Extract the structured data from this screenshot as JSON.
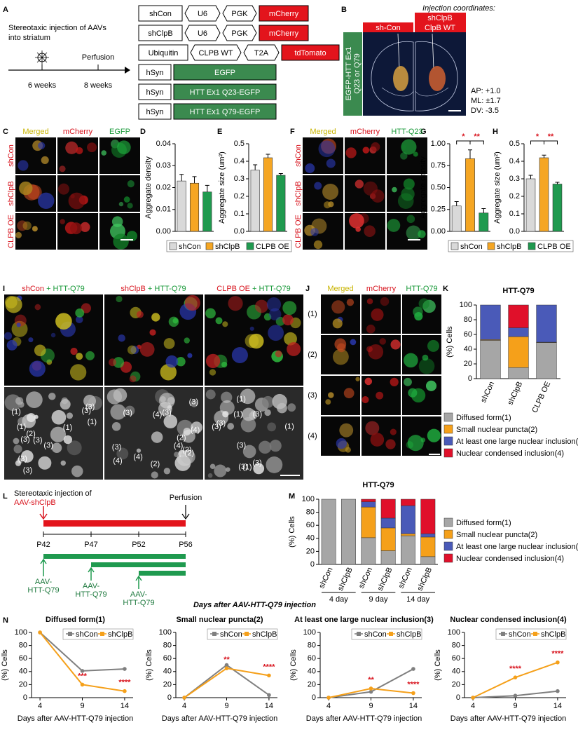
{
  "panel_labels": [
    "A",
    "B",
    "C",
    "D",
    "E",
    "F",
    "G",
    "H",
    "I",
    "J",
    "K",
    "L",
    "M",
    "N"
  ],
  "panel_a": {
    "injection": [
      "Stereotaxic injection of AAVs",
      "into striatum"
    ],
    "perfusion": "Perfusion",
    "timepoints": [
      "6 weeks",
      "8 weeks"
    ],
    "constructs": [
      {
        "parts": [
          "shCon",
          "U6",
          "PGK",
          "mCherry"
        ],
        "color": "#e3141c"
      },
      {
        "parts": [
          "shClpB",
          "U6",
          "PGK",
          "mCherry"
        ],
        "color": "#e3141c"
      },
      {
        "parts": [
          "Ubiquitin",
          "CLPB WT",
          "T2A",
          "tdTomato"
        ],
        "color": "#e3141c"
      },
      {
        "parts": [
          "hSyn",
          "EGFP"
        ],
        "color": "#3b8a4f"
      },
      {
        "parts": [
          "hSyn",
          "HTT Ex1 Q23-EGFP"
        ],
        "color": "#3b8a4f"
      },
      {
        "parts": [
          "hSyn",
          "HTT Ex1 Q79-EGFP"
        ],
        "color": "#3b8a4f"
      }
    ]
  },
  "panel_b": {
    "title": "Injection coordinates:",
    "left_label": "sh-Con",
    "right_label": [
      "shClpB",
      "ClpB WT"
    ],
    "side_label": [
      "EGFP-HTT Ex1",
      "Q23 or Q79"
    ],
    "coordinates": [
      "AP: +1.0",
      "ML: ±1.7",
      "DV: -3.5"
    ]
  },
  "panel_c": {
    "columns": [
      "Merged",
      "mCherry",
      "EGFP"
    ],
    "rows": [
      "shCon",
      "shClpB",
      "CLPB OE"
    ]
  },
  "panel_f": {
    "columns": [
      "Merged",
      "mCherry",
      "HTT-Q23"
    ],
    "rows": [
      "shCon",
      "shClpB",
      "CLPB OE"
    ]
  },
  "panel_i": {
    "titles": [
      [
        "shCon",
        "+ HTT-Q79"
      ],
      [
        "shClpB",
        "+ HTT-Q79"
      ],
      [
        "CLPB OE",
        "+ HTT-Q79"
      ]
    ],
    "labels": [
      [
        "(3)",
        "(1)",
        "(1)",
        "(3)",
        "(3)",
        "(3)",
        "(3)",
        "(1)",
        "(3)",
        "(1)",
        "(3)",
        "(2)"
      ],
      [
        "(3)",
        "(4)",
        "(2)",
        "(3)",
        "(2)",
        "(4)",
        "(4)",
        "(2)",
        "(3)",
        "(4)",
        "(2)",
        "(3)",
        "(4)"
      ],
      [
        "(3)",
        "(1)",
        "(3)",
        "(3)",
        "(3)",
        "(1)",
        "(3)",
        "(3)",
        "(1)",
        "(1)"
      ]
    ]
  },
  "panel_j": {
    "columns": [
      "Merged",
      "mCherry",
      "HTT-Q79"
    ],
    "rows": [
      "(1)",
      "(2)",
      "(3)",
      "(4)"
    ]
  },
  "panel_l": {
    "injection": [
      "Stereotaxic injection of",
      "AAV-shClpB"
    ],
    "perfusion": "Perfusion",
    "ages": [
      "P42",
      "P47",
      "P52",
      "P56"
    ],
    "virus": [
      "AAV-",
      "HTT-Q79"
    ]
  },
  "chart_data": [
    {
      "type": "bar",
      "ylabel": "Aggregate density",
      "categories": [
        "shCon",
        "shClpB",
        "CLPB OE"
      ],
      "values": [
        0.023,
        0.022,
        0.018
      ],
      "errors": [
        0.003,
        0.003,
        0.003
      ],
      "colors": [
        "#d9d9d9",
        "#f5a623",
        "#1f9a4f"
      ],
      "ylim": [
        0,
        0.04
      ],
      "yticks": [
        {
          "value": 0,
          "label": "0.00"
        },
        0.01,
        0.02,
        0.03,
        0.04
      ]
    },
    {
      "type": "bar",
      "ylabel": "Aggregate size (um²)",
      "categories": [
        "shCon",
        "shClpB",
        "CLPB OE"
      ],
      "values": [
        0.35,
        0.42,
        0.32
      ],
      "errors": [
        0.03,
        0.02,
        0.01
      ],
      "colors": [
        "#d9d9d9",
        "#f5a623",
        "#1f9a4f"
      ],
      "ylim": [
        0,
        0.5
      ],
      "yticks": [
        {
          "value": 0,
          "label": "0.0"
        },
        0.1,
        0.2,
        0.3,
        0.4,
        0.5
      ]
    },
    {
      "type": "bar",
      "ylabel": "Aggregate density",
      "categories": [
        "shCon",
        "shClpB",
        "CLPB OE"
      ],
      "values": [
        0.29,
        0.83,
        0.21
      ],
      "errors": [
        0.05,
        0.1,
        0.05
      ],
      "colors": [
        "#d9d9d9",
        "#f5a623",
        "#1f9a4f"
      ],
      "ylim": [
        0,
        1
      ],
      "yticks": [
        {
          "value": 0,
          "label": "0.00"
        },
        0.25,
        {
          "value": 0.5,
          "label": "0.50"
        },
        0.75,
        {
          "value": 1,
          "label": "1.00"
        }
      ],
      "annotations": [
        "*",
        "**"
      ]
    },
    {
      "type": "bar",
      "ylabel": "Aggregate size (um²)",
      "categories": [
        "shCon",
        "shClpB",
        "CLPB OE"
      ],
      "values": [
        0.3,
        0.42,
        0.27
      ],
      "errors": [
        0.02,
        0.015,
        0.01
      ],
      "colors": [
        "#d9d9d9",
        "#f5a623",
        "#1f9a4f"
      ],
      "ylim": [
        0,
        0.5
      ],
      "yticks": [
        {
          "value": 0,
          "label": "0.0"
        },
        0.1,
        0.2,
        0.3,
        0.4,
        0.5
      ],
      "annotations": [
        "*",
        "**"
      ]
    },
    {
      "type": "stacked_bar",
      "title": "HTT-Q79",
      "ylabel": "(%) Cells",
      "categories": [
        "shCon",
        "shClpB",
        "CLPB OE"
      ],
      "series": [
        {
          "name": "Diffused form(1)",
          "color": "#a6a6a6",
          "values": [
            52,
            15,
            49
          ]
        },
        {
          "name": "Small nuclear puncta(2)",
          "color": "#f5a01a",
          "values": [
            1,
            42,
            0.5
          ]
        },
        {
          "name": "At least one large nuclear inclusion(3)",
          "color": "#4a5ab8",
          "values": [
            47,
            12,
            50.5
          ]
        },
        {
          "name": "Nuclear condensed inclusion(4)",
          "color": "#e0102a",
          "values": [
            0,
            31,
            0
          ]
        }
      ],
      "ylim": [
        0,
        100
      ],
      "yticks": [
        0,
        20,
        40,
        60,
        80,
        100
      ]
    },
    {
      "type": "stacked_bar",
      "title": "HTT-Q79",
      "ylabel": "(%) Cells",
      "categories": [
        "shCon",
        "shClpB",
        "shCon",
        "shClpB",
        "shCon",
        "shClpB"
      ],
      "groups": [
        "4 day",
        "9 day",
        "14 day"
      ],
      "xlabel": "Days after AAV-HTT-Q79 injection",
      "series": [
        {
          "name": "Diffused form(1)",
          "color": "#a6a6a6",
          "values": [
            100,
            100,
            41,
            21,
            44,
            12
          ]
        },
        {
          "name": "Small nuclear puncta(2)",
          "color": "#f5a01a",
          "values": [
            0,
            0,
            47,
            35,
            3,
            30
          ]
        },
        {
          "name": "At least one large nuclear inclusion(3)",
          "color": "#4a5ab8",
          "values": [
            0,
            0,
            8,
            15,
            43,
            5
          ]
        },
        {
          "name": "Nuclear condensed inclusion(4)",
          "color": "#e0102a",
          "values": [
            0,
            0,
            4,
            29,
            10,
            53
          ]
        }
      ],
      "ylim": [
        0,
        100
      ],
      "yticks": [
        0,
        20,
        40,
        60,
        80,
        100
      ]
    },
    {
      "type": "line",
      "title": "Diffused form(1)",
      "ylabel": "(%) Cells",
      "xlabel": "Days after AAV-HTT-Q79 injection",
      "x": [
        4,
        9,
        14
      ],
      "xlim": [
        3,
        15
      ],
      "xticks": [
        4,
        9,
        14
      ],
      "ylim": [
        0,
        100
      ],
      "yticks": [
        0,
        20,
        40,
        60,
        80,
        100
      ],
      "series": [
        {
          "name": "shCon",
          "color": "#7f7f7f",
          "values": [
            100,
            41,
            44
          ]
        },
        {
          "name": "shClpB",
          "color": "#f5a01a",
          "values": [
            100,
            20,
            10
          ]
        }
      ],
      "annotations": [
        "***",
        "****"
      ]
    },
    {
      "type": "line",
      "title": "Small nuclear puncta(2)",
      "ylabel": "(%) Cells",
      "xlabel": "Days after AAV-HTT-Q79 injection",
      "x": [
        4,
        9,
        14
      ],
      "xlim": [
        3,
        15
      ],
      "xticks": [
        4,
        9,
        14
      ],
      "ylim": [
        0,
        100
      ],
      "yticks": [
        0,
        20,
        40,
        60,
        80,
        100
      ],
      "series": [
        {
          "name": "shCon",
          "color": "#7f7f7f",
          "values": [
            0,
            50,
            4
          ]
        },
        {
          "name": "shClpB",
          "color": "#f5a01a",
          "values": [
            0,
            45,
            34
          ]
        }
      ],
      "annotations": [
        "**",
        "****"
      ]
    },
    {
      "type": "line",
      "title": "At least one large nuclear inclusion(3)",
      "ylabel": "(%) Cells",
      "xlabel": "Days after AAV-HTT-Q79 injection",
      "x": [
        4,
        9,
        14
      ],
      "xlim": [
        3,
        15
      ],
      "xticks": [
        4,
        9,
        14
      ],
      "ylim": [
        0,
        100
      ],
      "yticks": [
        0,
        20,
        40,
        60,
        80,
        100
      ],
      "series": [
        {
          "name": "shCon",
          "color": "#7f7f7f",
          "values": [
            0,
            9,
            44
          ]
        },
        {
          "name": "shClpB",
          "color": "#f5a01a",
          "values": [
            0,
            14,
            7
          ]
        }
      ],
      "annotations": [
        "**",
        "****"
      ]
    },
    {
      "type": "line",
      "title": "Nuclear condensed inclusion(4)",
      "ylabel": "(%) Cells",
      "xlabel": "Days after AAV-HTT-Q79 injection",
      "x": [
        4,
        9,
        14
      ],
      "xlim": [
        3,
        15
      ],
      "xticks": [
        4,
        9,
        14
      ],
      "ylim": [
        0,
        100
      ],
      "yticks": [
        0,
        20,
        40,
        60,
        80,
        100
      ],
      "series": [
        {
          "name": "shCon",
          "color": "#7f7f7f",
          "values": [
            0,
            3,
            10
          ]
        },
        {
          "name": "shClpB",
          "color": "#f5a01a",
          "values": [
            0,
            31,
            54
          ]
        }
      ],
      "annotations": [
        "****",
        "****"
      ]
    }
  ]
}
